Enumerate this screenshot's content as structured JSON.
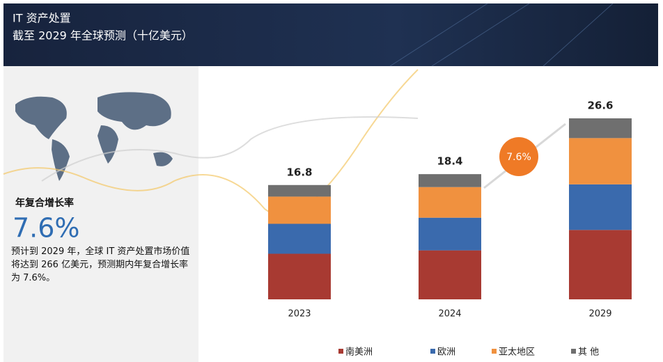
{
  "chart_data": {
    "type": "stacked-bar",
    "title": "IT 资产处置",
    "subtitle": "截至 2029 年全球预测（十亿美元）",
    "categories": [
      "2023",
      "2024",
      "2029"
    ],
    "series": [
      {
        "name": "南美洲",
        "color": "#a83a32",
        "values": [
          6.7,
          7.2,
          10.2
        ]
      },
      {
        "name": "欧洲",
        "color": "#3a6aad",
        "values": [
          4.4,
          4.8,
          6.7
        ]
      },
      {
        "name": "亚太地区",
        "color": "#f0913f",
        "values": [
          4.0,
          4.5,
          6.8
        ]
      },
      {
        "name": "其 他",
        "color": "#6f6f6f",
        "values": [
          1.7,
          1.9,
          2.9
        ]
      }
    ],
    "totals": [
      16.8,
      18.4,
      26.6
    ],
    "growth_badge": "7.6%"
  },
  "sidebar": {
    "cagr_label": "年复合增长率",
    "cagr_value": "7.6%",
    "text": "预计到 2029 年，全球 IT 资产处置市场价值将达到 266 亿美元，预测期内年复合增长率为 7.6%。"
  }
}
